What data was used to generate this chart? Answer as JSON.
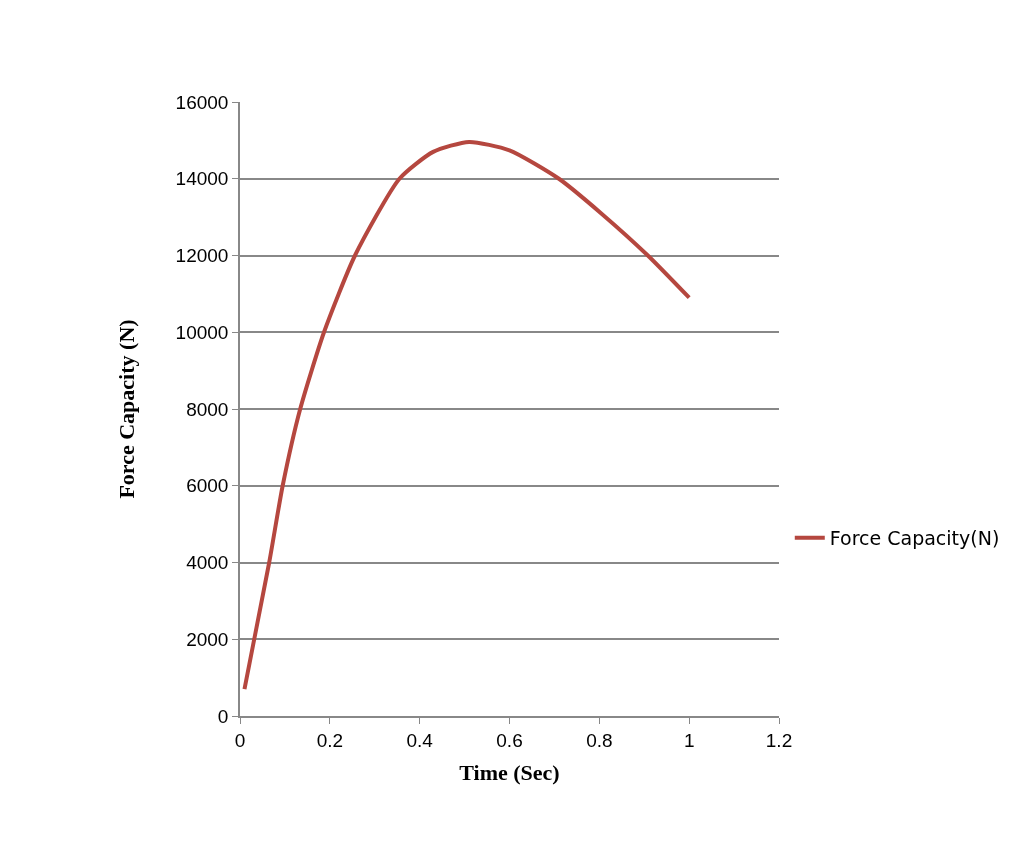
{
  "chart_data": {
    "type": "line",
    "xlabel": "Time (Sec)",
    "ylabel": "Force Capacity (N)",
    "xlim": [
      0,
      1.2
    ],
    "xticks": [
      0,
      0.2,
      0.4,
      0.6,
      0.8,
      1,
      1.2
    ],
    "ylim": [
      0,
      16000
    ],
    "yticks": [
      0,
      2000,
      4000,
      6000,
      8000,
      10000,
      12000,
      14000,
      16000
    ],
    "grid": "y",
    "legend": "right",
    "marker": "none",
    "line_style": "solid",
    "series": [
      {
        "name": "Force Capacity(N)",
        "color": "#b5473f",
        "x": [
          0.01,
          0.065,
          0.095,
          0.134,
          0.187,
          0.256,
          0.355,
          0.43,
          0.51,
          0.6,
          0.71,
          0.805,
          0.908,
          1.0
        ],
        "values": [
          700,
          4000,
          6000,
          8000,
          10000,
          12000,
          14000,
          14700,
          14960,
          14740,
          14000,
          13090,
          12000,
          10900
        ]
      }
    ]
  }
}
